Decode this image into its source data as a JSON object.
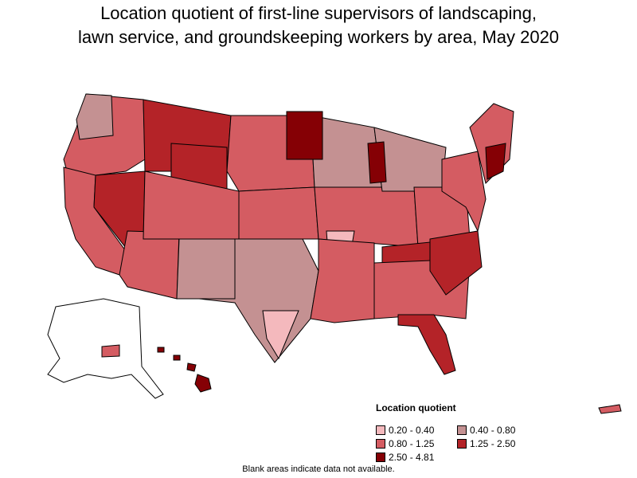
{
  "title": {
    "line1": "Location quotient of first-line supervisors of landscaping,",
    "line2": "lawn service, and groundskeeping workers by area, May 2020"
  },
  "colors": {
    "c1": "#f4b9bd",
    "c2": "#c49192",
    "c3": "#d45c62",
    "c4": "#b42328",
    "c5": "#850005",
    "border": "#000000",
    "nodata": "#ffffff"
  },
  "legend": {
    "title": "Location quotient",
    "items": [
      {
        "label": "0.20 - 0.40",
        "color": "#f4b9bd"
      },
      {
        "label": "0.40 - 0.80",
        "color": "#c49192"
      },
      {
        "label": "0.80 - 1.25",
        "color": "#d45c62"
      },
      {
        "label": "1.25 - 2.50",
        "color": "#b42328"
      },
      {
        "label": "2.50 - 4.81",
        "color": "#850005"
      }
    ]
  },
  "footnote": "Blank areas indicate data not available."
}
